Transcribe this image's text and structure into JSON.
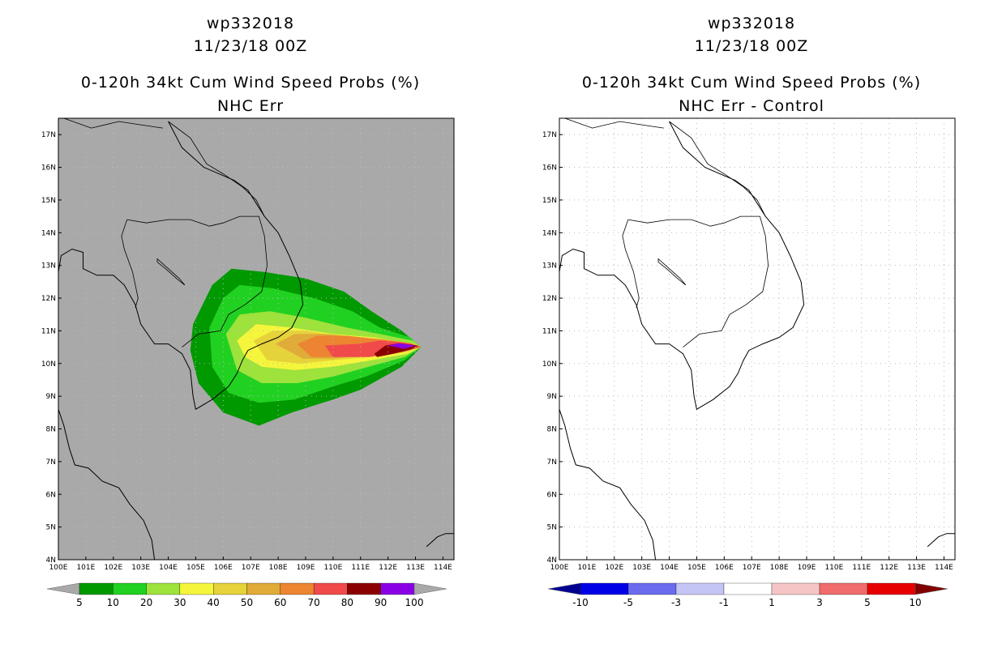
{
  "panels": [
    {
      "title_line1": "wp332018",
      "title_line2": "11/23/18 00Z",
      "title_line3": "0-120h 34kt Cum Wind Speed Probs (%)",
      "title_line4": "NHC Err",
      "background": "#a9a9a9",
      "colorbar_labels": [
        "5",
        "10",
        "20",
        "30",
        "40",
        "50",
        "60",
        "70",
        "80",
        "90",
        "100"
      ],
      "colorbar_colors": [
        "#009900",
        "#21d121",
        "#9ee23c",
        "#f5f53c",
        "#e6d23a",
        "#e0ab38",
        "#ec8431",
        "#f04a4a",
        "#8a0000",
        "#8a00e6"
      ],
      "extend_color": "#a9a9a9"
    },
    {
      "title_line1": "wp332018",
      "title_line2": "11/23/18 00Z",
      "title_line3": "0-120h 34kt Cum Wind Speed Probs (%)",
      "title_line4": "NHC Err - Control",
      "background": "#ffffff",
      "colorbar_labels": [
        "-10",
        "-5",
        "-3",
        "-1",
        "1",
        "3",
        "5",
        "10"
      ],
      "colorbar_colors": [
        "#0000e6",
        "#6b6bf0",
        "#c4c4f5",
        "#ffffff",
        "#f5c4c4",
        "#f06b6b",
        "#e60000"
      ],
      "extend_low": "#000090",
      "extend_high": "#800000"
    }
  ],
  "map": {
    "lat_labels": [
      "17N",
      "16N",
      "15N",
      "14N",
      "13N",
      "12N",
      "11N",
      "10N",
      "9N",
      "8N",
      "7N",
      "6N",
      "5N",
      "4N"
    ],
    "lon_labels": [
      "100E",
      "101E",
      "102E",
      "103E",
      "104E",
      "105E",
      "106E",
      "107E",
      "108E",
      "109E",
      "110E",
      "111E",
      "112E",
      "113E",
      "114E"
    ],
    "lat_range": [
      4,
      17.5
    ],
    "lon_range": [
      100,
      114.4
    ]
  },
  "chart_data": [
    {
      "type": "heatmap",
      "title": "0-120h 34kt Cum Wind Speed Probs (%) — NHC Err",
      "storm": "wp332018",
      "valid": "11/23/18 00Z",
      "units": "%",
      "levels": [
        5,
        10,
        20,
        30,
        40,
        50,
        60,
        70,
        80,
        90,
        100
      ],
      "contours": [
        {
          "level": 5,
          "points": [
            [
              104.9,
              11.2
            ],
            [
              105.6,
              12.4
            ],
            [
              106.3,
              12.9
            ],
            [
              107.5,
              12.8
            ],
            [
              109.0,
              12.6
            ],
            [
              110.4,
              12.2
            ],
            [
              111.4,
              11.6
            ],
            [
              112.5,
              11.0
            ],
            [
              113.2,
              10.5
            ],
            [
              112.5,
              9.9
            ],
            [
              111.0,
              9.2
            ],
            [
              110.0,
              8.9
            ],
            [
              108.5,
              8.5
            ],
            [
              107.3,
              8.1
            ],
            [
              106.0,
              8.5
            ],
            [
              105.1,
              9.4
            ],
            [
              104.8,
              10.4
            ]
          ]
        },
        {
          "level": 10,
          "points": [
            [
              105.5,
              11.1
            ],
            [
              106.0,
              12.0
            ],
            [
              106.6,
              12.4
            ],
            [
              107.8,
              12.3
            ],
            [
              109.3,
              12.0
            ],
            [
              110.7,
              11.6
            ],
            [
              111.7,
              11.1
            ],
            [
              112.8,
              10.8
            ],
            [
              113.2,
              10.5
            ],
            [
              112.6,
              10.1
            ],
            [
              111.2,
              9.6
            ],
            [
              110.0,
              9.3
            ],
            [
              108.6,
              8.9
            ],
            [
              107.3,
              8.8
            ],
            [
              106.2,
              9.1
            ],
            [
              105.6,
              9.9
            ]
          ]
        },
        {
          "level": 20,
          "points": [
            [
              106.1,
              10.9
            ],
            [
              106.6,
              11.5
            ],
            [
              107.7,
              11.6
            ],
            [
              109.0,
              11.4
            ],
            [
              110.5,
              11.1
            ],
            [
              111.7,
              10.9
            ],
            [
              112.9,
              10.7
            ],
            [
              113.2,
              10.5
            ],
            [
              112.6,
              10.2
            ],
            [
              111.3,
              9.9
            ],
            [
              110.0,
              9.6
            ],
            [
              108.7,
              9.4
            ],
            [
              107.4,
              9.4
            ],
            [
              106.5,
              9.8
            ]
          ]
        },
        {
          "level": 30,
          "points": [
            [
              106.5,
              10.7
            ],
            [
              107.2,
              11.2
            ],
            [
              108.5,
              11.1
            ],
            [
              110.0,
              10.9
            ],
            [
              111.5,
              10.8
            ],
            [
              112.9,
              10.6
            ],
            [
              113.2,
              10.5
            ],
            [
              112.7,
              10.3
            ],
            [
              111.4,
              10.1
            ],
            [
              110.0,
              9.9
            ],
            [
              108.6,
              9.8
            ],
            [
              107.4,
              9.9
            ],
            [
              106.8,
              10.2
            ]
          ]
        },
        {
          "level": 40,
          "points": [
            [
              107.1,
              10.7
            ],
            [
              107.8,
              11.0
            ],
            [
              109.0,
              11.0
            ],
            [
              110.5,
              10.8
            ],
            [
              111.8,
              10.75
            ],
            [
              113.0,
              10.6
            ],
            [
              113.2,
              10.5
            ],
            [
              112.7,
              10.35
            ],
            [
              111.4,
              10.2
            ],
            [
              110.0,
              10.1
            ],
            [
              108.8,
              10.0
            ],
            [
              107.6,
              10.1
            ]
          ]
        },
        {
          "level": 50,
          "points": [
            [
              107.9,
              10.6
            ],
            [
              108.6,
              10.9
            ],
            [
              109.8,
              10.9
            ],
            [
              111.0,
              10.8
            ],
            [
              112.2,
              10.7
            ],
            [
              113.1,
              10.55
            ],
            [
              113.2,
              10.5
            ],
            [
              112.7,
              10.4
            ],
            [
              111.3,
              10.25
            ],
            [
              110.0,
              10.15
            ],
            [
              108.9,
              10.15
            ]
          ]
        },
        {
          "level": 60,
          "points": [
            [
              108.7,
              10.6
            ],
            [
              109.4,
              10.85
            ],
            [
              110.5,
              10.85
            ],
            [
              111.6,
              10.75
            ],
            [
              112.6,
              10.65
            ],
            [
              113.2,
              10.5
            ],
            [
              112.7,
              10.4
            ],
            [
              111.4,
              10.3
            ],
            [
              110.2,
              10.2
            ],
            [
              109.2,
              10.2
            ]
          ]
        },
        {
          "level": 70,
          "points": [
            [
              109.7,
              10.55
            ],
            [
              110.9,
              10.6
            ],
            [
              111.7,
              10.7
            ],
            [
              112.8,
              10.62
            ],
            [
              113.2,
              10.5
            ],
            [
              112.5,
              10.35
            ],
            [
              111.3,
              10.2
            ],
            [
              110.0,
              10.2
            ]
          ]
        },
        {
          "level": 80,
          "points": [
            [
              111.5,
              10.3
            ],
            [
              111.9,
              10.55
            ],
            [
              112.4,
              10.62
            ],
            [
              113.1,
              10.55
            ],
            [
              112.8,
              10.42
            ],
            [
              112.2,
              10.3
            ],
            [
              111.6,
              10.2
            ]
          ]
        },
        {
          "level": 90,
          "points": [
            [
              112.0,
              10.55
            ],
            [
              112.4,
              10.62
            ],
            [
              113.0,
              10.55
            ],
            [
              112.6,
              10.45
            ]
          ]
        }
      ]
    },
    {
      "type": "heatmap",
      "title": "0-120h 34kt Cum Wind Speed Probs (%) — NHC Err - Control",
      "storm": "wp332018",
      "valid": "11/23/18 00Z",
      "units": "%",
      "levels": [
        -10,
        -5,
        -3,
        -1,
        1,
        3,
        5,
        10
      ],
      "contours": []
    }
  ]
}
